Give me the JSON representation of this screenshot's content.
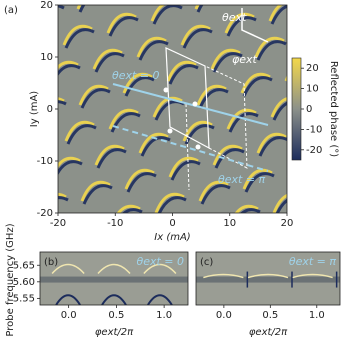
{
  "chart_data": [
    {
      "type": "heatmap",
      "panel_label": "(a)",
      "xlabel": "Ix (mA)",
      "ylabel": "Iy (mA)",
      "xlim": [
        -20,
        20
      ],
      "ylim": [
        -20,
        20
      ],
      "xticks": [
        -20,
        -10,
        0,
        10,
        20
      ],
      "yticks": [
        -20,
        -10,
        0,
        10,
        20
      ],
      "colorbar_label": "Reflected phase (°)",
      "clim": [
        -25,
        25
      ],
      "cticks": [
        -20,
        -10,
        0,
        10,
        20
      ],
      "colormap": [
        "#1c2c5c",
        "#8c918a",
        "#f3d84a"
      ],
      "annotations": [
        "θext = 0",
        "θext = π",
        "θext",
        "φext"
      ]
    },
    {
      "type": "heatmap",
      "panel_label": "(b)",
      "xlabel": "φext/2π",
      "ylabel": "Probe frequency (GHz)",
      "xlim": [
        -0.3,
        1.25
      ],
      "ylim": [
        5.53,
        5.69
      ],
      "xticks": [
        {
          "value": 0,
          "label": "0.0"
        },
        {
          "value": 0.5,
          "label": "0.5"
        },
        {
          "value": 1,
          "label": "1.0"
        }
      ],
      "yticks": [
        {
          "value": 5.55,
          "label": "5.55"
        },
        {
          "value": 5.6,
          "label": "5.60"
        },
        {
          "value": 5.65,
          "label": "5.65"
        }
      ],
      "annotations": [
        "θext = 0"
      ]
    },
    {
      "type": "heatmap",
      "panel_label": "(c)",
      "xlabel": "φext/2π",
      "xlim": [
        -0.3,
        1.25
      ],
      "ylim": [
        5.53,
        5.69
      ],
      "xticks": [
        {
          "value": 0,
          "label": "0.0"
        },
        {
          "value": 0.5,
          "label": "0.5"
        },
        {
          "value": 1,
          "label": "1.0"
        }
      ],
      "annotations": [
        "θext = π"
      ]
    }
  ]
}
